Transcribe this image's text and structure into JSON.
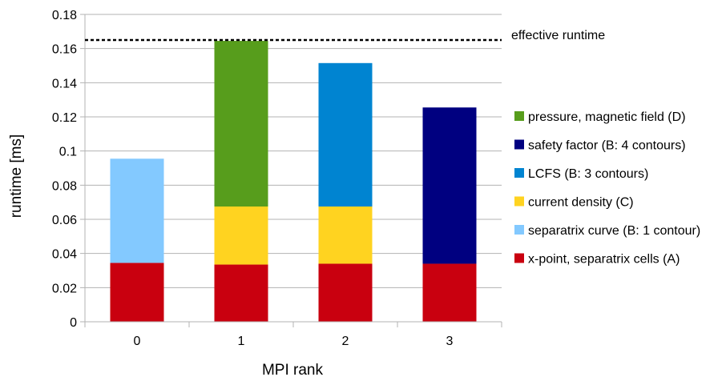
{
  "chart_data": {
    "type": "bar",
    "stacked": true,
    "xlabel": "MPI rank",
    "ylabel": "runtime [ms]",
    "ylim": [
      0,
      0.18
    ],
    "yticks": [
      "0",
      "0.02",
      "0.04",
      "0.06",
      "0.08",
      "0.1",
      "0.12",
      "0.14",
      "0.16",
      "0.18"
    ],
    "categories": [
      "0",
      "1",
      "2",
      "3"
    ],
    "grid": true,
    "legend_position": "right",
    "series": [
      {
        "name": "x-point, separatrix cells (A)",
        "color": "#c9000f",
        "values": [
          0.0345,
          0.0335,
          0.034,
          0.034
        ]
      },
      {
        "name": "separatrix curve (B: 1 contour)",
        "color": "#83c9ff",
        "values": [
          0.061,
          0,
          0,
          0
        ]
      },
      {
        "name": "current density (C)",
        "color": "#ffd320",
        "values": [
          0,
          0.034,
          0.0335,
          0
        ]
      },
      {
        "name": "LCFS (B: 3 contours)",
        "color": "#0084d1",
        "values": [
          0,
          0,
          0.084,
          0
        ]
      },
      {
        "name": "safety factor (B: 4 contours)",
        "color": "#000080",
        "values": [
          0,
          0,
          0,
          0.0915
        ]
      },
      {
        "name": "pressure, magnetic field (D)",
        "color": "#579d1c",
        "values": [
          0,
          0.097,
          0,
          0
        ]
      }
    ],
    "legend_order": [
      5,
      4,
      3,
      2,
      1,
      0
    ],
    "reference_line": {
      "label": "effective runtime",
      "value": 0.165
    }
  }
}
